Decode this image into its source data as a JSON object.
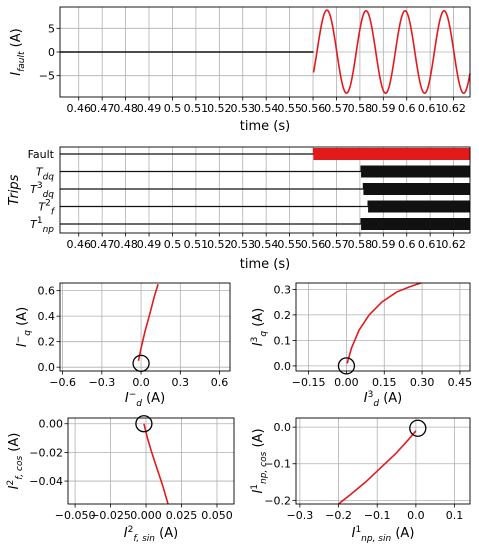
{
  "colors": {
    "red": "#e31a1c",
    "black": "#111111",
    "grid": "#b0b0b0"
  },
  "chart_data": [
    {
      "type": "line",
      "ylabel": "I_fault (A)",
      "xlabel": "time (s)",
      "xlim": [
        0.452,
        0.627
      ],
      "ylim": [
        -9.5,
        9.5
      ],
      "x_ticks": [
        0.46,
        0.47,
        0.48,
        0.49,
        0.5,
        0.51,
        0.52,
        0.53,
        0.54,
        0.55,
        0.56,
        0.57,
        0.58,
        0.59,
        0.6,
        0.61,
        0.62
      ],
      "y_ticks": [
        -5,
        0,
        5
      ],
      "grid": true,
      "series": [
        {
          "color": "#111111",
          "x": [
            0.452,
            0.5602
          ],
          "y": [
            0,
            0
          ]
        },
        {
          "color": "#e31a1c",
          "type": "sine",
          "t_start": 0.5602,
          "t_end": 0.627,
          "amplitude": 8.7,
          "frequency_hz": 60
        }
      ]
    },
    {
      "type": "timeline",
      "ylabel": "Trips",
      "xlabel": "time (s)",
      "xlim": [
        0.452,
        0.627
      ],
      "x_ticks": [
        0.46,
        0.47,
        0.48,
        0.49,
        0.5,
        0.51,
        0.52,
        0.53,
        0.54,
        0.55,
        0.56,
        0.57,
        0.58,
        0.59,
        0.6,
        0.61,
        0.62
      ],
      "grid": true,
      "rows": [
        {
          "label": "Fault",
          "on_time": 0.5602,
          "color": "#e31a1c"
        },
        {
          "label": "T_dq",
          "on_time": 0.5805,
          "color": "#111111"
        },
        {
          "label": "T^3_dq",
          "on_time": 0.5815,
          "color": "#111111"
        },
        {
          "label": "T^2_f",
          "on_time": 0.5835,
          "color": "#111111"
        },
        {
          "label": "T^1_np",
          "on_time": 0.5805,
          "color": "#111111"
        }
      ]
    },
    {
      "type": "line",
      "xlabel": "I^-_d (A)",
      "ylabel": "I^-_q (A)",
      "xlim": [
        -0.62,
        0.68
      ],
      "ylim": [
        -0.03,
        0.66
      ],
      "x_ticks": [
        -0.6,
        -0.3,
        0.0,
        0.3,
        0.6
      ],
      "y_ticks": [
        0.0,
        0.2,
        0.4,
        0.6
      ],
      "grid": true,
      "circle": {
        "x": 0.0,
        "y": 0.03
      },
      "series": [
        {
          "color": "#e31a1c",
          "x": [
            -0.02,
            0.0,
            0.03,
            0.07,
            0.1,
            0.13
          ],
          "y": [
            0.05,
            0.15,
            0.28,
            0.43,
            0.55,
            0.65
          ]
        }
      ]
    },
    {
      "type": "line",
      "xlabel": "I^3_d (A)",
      "ylabel": "I^3_q (A)",
      "xlim": [
        -0.2,
        0.49
      ],
      "ylim": [
        -0.02,
        0.325
      ],
      "x_ticks": [
        -0.15,
        0.0,
        0.15,
        0.3,
        0.45
      ],
      "x_tick_labels": [
        "−0.15",
        "0.00",
        "0.15",
        "0.30",
        "0.45"
      ],
      "y_ticks": [
        0.0,
        0.1,
        0.2,
        0.3
      ],
      "grid": true,
      "circle": {
        "x": 0.0,
        "y": 0.0
      },
      "series": [
        {
          "color": "#e31a1c",
          "x": [
            0.003,
            0.02,
            0.05,
            0.09,
            0.14,
            0.2,
            0.25,
            0.295
          ],
          "y": [
            0.01,
            0.07,
            0.14,
            0.2,
            0.25,
            0.29,
            0.31,
            0.325
          ]
        }
      ]
    },
    {
      "type": "line",
      "xlabel": "I^2_f,sin (A)",
      "ylabel": "I^2_f,cos (A)",
      "xlim": [
        -0.055,
        0.062
      ],
      "ylim": [
        -0.056,
        0.004
      ],
      "x_ticks": [
        -0.05,
        -0.025,
        0.0,
        0.025,
        0.05
      ],
      "x_tick_labels": [
        "−0.050",
        "−0.025",
        "0.000",
        "0.025",
        "0.050"
      ],
      "y_ticks": [
        -0.04,
        -0.02,
        0.0
      ],
      "y_tick_labels": [
        "−0.04",
        "−0.02",
        "0.00"
      ],
      "grid": true,
      "circle": {
        "x": -0.0015,
        "y": 0.0
      },
      "series": [
        {
          "color": "#e31a1c",
          "x": [
            -0.0015,
            0.001,
            0.004,
            0.008,
            0.012,
            0.0155
          ],
          "y": [
            0.0,
            -0.01,
            -0.02,
            -0.032,
            -0.044,
            -0.056
          ]
        }
      ]
    },
    {
      "type": "line",
      "xlabel": "I^1_np,sin (A)",
      "ylabel": "I^1_np,cos (A)",
      "xlim": [
        -0.31,
        0.14
      ],
      "ylim": [
        -0.21,
        0.025
      ],
      "x_ticks": [
        -0.3,
        -0.2,
        -0.1,
        0.0,
        0.1
      ],
      "x_tick_labels": [
        "−0.3",
        "−0.2",
        "−0.1",
        "0.0",
        "0.1"
      ],
      "y_ticks": [
        -0.2,
        -0.1,
        0.0
      ],
      "y_tick_labels": [
        "−0.2",
        "−0.1",
        "0.0"
      ],
      "grid": true,
      "circle": {
        "x": 0.005,
        "y": -0.003
      },
      "series": [
        {
          "color": "#e31a1c",
          "x": [
            0.0,
            -0.02,
            -0.05,
            -0.09,
            -0.13,
            -0.17,
            -0.2
          ],
          "y": [
            -0.01,
            -0.035,
            -0.07,
            -0.11,
            -0.15,
            -0.185,
            -0.21
          ]
        }
      ]
    }
  ]
}
